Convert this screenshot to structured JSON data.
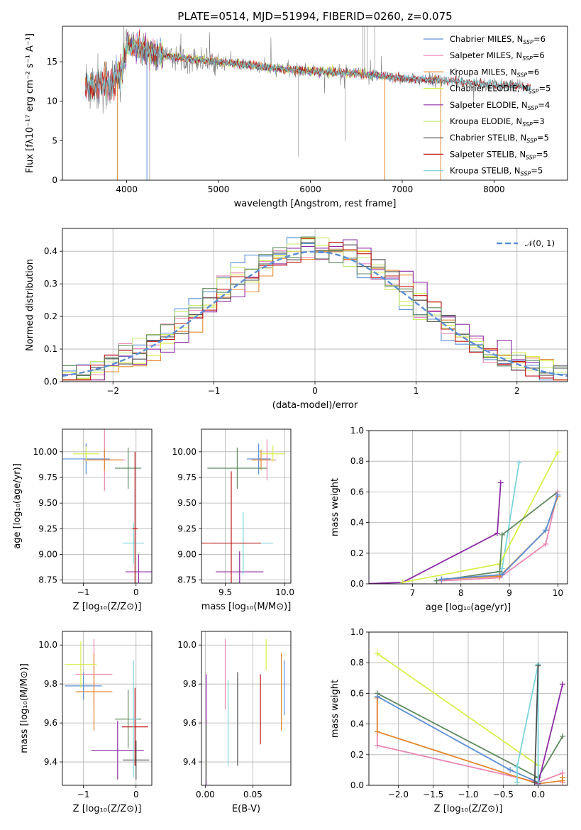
{
  "colors": {
    "chabrier_miles": "#5b8fd6",
    "salpeter_miles": "#e987b5",
    "kroupa_miles": "#e4872f",
    "chabrier_elodie": "#d8ef4a",
    "salpeter_elodie": "#8e2ca6",
    "kroupa_elodie": "#c8ea72",
    "chabrier_stelib": "#4c4c4c",
    "salpeter_stelib": "#c01818",
    "kroupa_stelib": "#7ad4dc",
    "spectrum_grey": "#808080",
    "gauss": "#5b8fd6",
    "green": "#5f8a5f",
    "cyan": "#6fc9d3"
  },
  "chart_data": [
    {
      "id": "spectrum",
      "type": "line",
      "title": "PLATE=0514, MJD=51994, FIBERID=0260, z=0.075",
      "xlabel": "wavelength [Angstrom, rest frame]",
      "ylabel": "Flux [fλ10⁻¹⁷ erg cm⁻² s⁻¹ A⁻¹]",
      "xlim": [
        3300,
        8800
      ],
      "ylim": [
        0,
        19.5
      ],
      "xticks": [
        "4000",
        "5000",
        "6000",
        "7000",
        "8000"
      ],
      "yticks": [
        "0",
        "5",
        "10",
        "15"
      ],
      "legend_position": "upper right",
      "legend": [
        {
          "label": "Chabrier MILES, N",
          "sub": "SSP",
          "n": "=6",
          "color_key": "chabrier_miles"
        },
        {
          "label": "Salpeter MILES, N",
          "sub": "SSP",
          "n": "=6",
          "color_key": "salpeter_miles"
        },
        {
          "label": "Kroupa MILES, N",
          "sub": "SSP",
          "n": "=6",
          "color_key": "kroupa_miles"
        },
        {
          "label": "Chabrier ELODIE, N",
          "sub": "SSP",
          "n": "=5",
          "color_key": "chabrier_elodie"
        },
        {
          "label": "Salpeter ELODIE, N",
          "sub": "SSP",
          "n": "=4",
          "color_key": "salpeter_elodie"
        },
        {
          "label": "Kroupa ELODIE, N",
          "sub": "SSP",
          "n": "=3",
          "color_key": "kroupa_elodie"
        },
        {
          "label": "Chabrier STELIB, N",
          "sub": "SSP",
          "n": "=5",
          "color_key": "chabrier_stelib"
        },
        {
          "label": "Salpeter STELIB, N",
          "sub": "SSP",
          "n": "=5",
          "color_key": "salpeter_stelib"
        },
        {
          "label": "Kroupa STELIB, N",
          "sub": "SSP",
          "n": "=5",
          "color_key": "kroupa_stelib"
        }
      ],
      "continuum": [
        [
          3550,
          12.0
        ],
        [
          3700,
          12.2
        ],
        [
          3850,
          12.3
        ],
        [
          3950,
          13.5
        ],
        [
          4000,
          17.0
        ],
        [
          4100,
          17.0
        ],
        [
          4300,
          16.0
        ],
        [
          4500,
          15.6
        ],
        [
          5000,
          15.0
        ],
        [
          5500,
          14.3
        ],
        [
          6000,
          13.8
        ],
        [
          6500,
          13.5
        ],
        [
          7000,
          12.9
        ],
        [
          7500,
          12.6
        ],
        [
          8000,
          12.1
        ],
        [
          8400,
          11.8
        ]
      ]
    },
    {
      "id": "residuals",
      "type": "histogram",
      "xlabel": "(data-model)/error",
      "ylabel": "Normed distribution",
      "xlim": [
        -2.5,
        2.5
      ],
      "ylim": [
        0,
        0.47
      ],
      "xticks": [
        "−2",
        "−1",
        "0",
        "1",
        "2"
      ],
      "yticks": [
        "0.0",
        "0.1",
        "0.2",
        "0.3",
        "0.4"
      ],
      "legend": "𝒩(0, 1)",
      "bins": [
        -2.5,
        2.5,
        36
      ]
    },
    {
      "id": "age_vs_Z",
      "type": "scatter",
      "xlabel": "Z [log₁₀(Z/Z⊙)]",
      "ylabel": "age  [log₁₀(age/yr)]",
      "xlim": [
        -1.4,
        0.3
      ],
      "ylim": [
        8.72,
        10.22
      ],
      "xticks": [
        "−1",
        "0"
      ],
      "yticks": [
        "8.75",
        "9.00",
        "9.25",
        "9.50",
        "9.75",
        "10.00"
      ],
      "points": [
        {
          "x": -0.95,
          "xerr": 0.45,
          "y": 9.93,
          "yerr": 0.15,
          "color_key": "chabrier_miles"
        },
        {
          "x": -0.6,
          "xerr": 0.4,
          "y": 9.92,
          "yerr": 0.3,
          "color_key": "salpeter_miles"
        },
        {
          "x": -0.6,
          "xerr": 0.35,
          "y": 9.92,
          "yerr": 0.1,
          "color_key": "kroupa_miles"
        },
        {
          "x": -0.95,
          "xerr": 0.25,
          "y": 9.98,
          "yerr": 0.07,
          "color_key": "chabrier_elodie"
        },
        {
          "x": 0.05,
          "xerr": 0.25,
          "y": 8.83,
          "yerr": 0.17,
          "color_key": "salpeter_elodie"
        },
        {
          "x": -0.15,
          "xerr": 0.25,
          "y": 9.84,
          "yerr": 0.2,
          "color_key": "green"
        },
        {
          "x": -0.05,
          "xerr": 0.2,
          "y": 9.11,
          "yerr": 0.2,
          "color_key": "kroupa_stelib"
        },
        {
          "x": -0.02,
          "xerr": 0.05,
          "y": 9.25,
          "yerr": 0.75,
          "color_key": "salpeter_stelib"
        }
      ]
    },
    {
      "id": "age_vs_mass",
      "type": "scatter",
      "xlabel": "mass [log₁₀(M/M⊙)]",
      "ylabel": "",
      "xlim": [
        9.3,
        10.05
      ],
      "ylim": [
        8.72,
        10.22
      ],
      "xticks": [
        "9.5",
        "10.0"
      ],
      "yticks": [
        "8.75",
        "9.00",
        "9.25",
        "9.50",
        "9.75",
        "10.00"
      ],
      "points": [
        {
          "x": 9.78,
          "xerr": 0.1,
          "y": 9.93,
          "yerr": 0.15,
          "color_key": "chabrier_miles"
        },
        {
          "x": 9.85,
          "xerr": 0.08,
          "y": 9.92,
          "yerr": 0.2,
          "color_key": "salpeter_miles"
        },
        {
          "x": 9.8,
          "xerr": 0.08,
          "y": 9.92,
          "yerr": 0.1,
          "color_key": "kroupa_miles"
        },
        {
          "x": 9.9,
          "xerr": 0.1,
          "y": 9.98,
          "yerr": 0.08,
          "color_key": "chabrier_elodie"
        },
        {
          "x": 9.62,
          "xerr": 0.2,
          "y": 8.83,
          "yerr": 0.2,
          "color_key": "salpeter_elodie"
        },
        {
          "x": 9.6,
          "xerr": 0.25,
          "y": 9.84,
          "yerr": 0.2,
          "color_key": "green"
        },
        {
          "x": 9.65,
          "xerr": 0.25,
          "y": 9.11,
          "yerr": 0.3,
          "color_key": "kroupa_stelib"
        },
        {
          "x": 9.55,
          "xerr": 0.25,
          "y": 9.11,
          "yerr": 0.7,
          "color_key": "salpeter_stelib"
        }
      ]
    },
    {
      "id": "massweight_vs_age",
      "type": "line",
      "xlabel": "age  [log₁₀(age/yr)]",
      "ylabel": "mass weight",
      "xlim": [
        6.1,
        10.2
      ],
      "ylim": [
        0,
        1
      ],
      "xticks": [
        "7",
        "8",
        "9",
        "10"
      ],
      "yticks": [
        "0.0",
        "0.2",
        "0.4",
        "0.6",
        "0.8",
        "1.0"
      ],
      "series": [
        {
          "color_key": "salpeter_elodie",
          "x": [
            6.0,
            6.8,
            8.75,
            8.82
          ],
          "y": [
            0.0,
            0.01,
            0.33,
            0.66
          ]
        },
        {
          "color_key": "kroupa_stelib",
          "x": [
            8.8,
            8.85,
            9.2
          ],
          "y": [
            0.05,
            0.1,
            0.79
          ]
        },
        {
          "color_key": "chabrier_elodie",
          "x": [
            6.8,
            8.8,
            10.0
          ],
          "y": [
            0.01,
            0.13,
            0.86
          ]
        },
        {
          "color_key": "green",
          "x": [
            7.5,
            8.8,
            8.85,
            10.0
          ],
          "y": [
            0.02,
            0.08,
            0.32,
            0.6
          ]
        },
        {
          "color_key": "salpeter_miles",
          "x": [
            7.6,
            8.8,
            9.75,
            10.0
          ],
          "y": [
            0.02,
            0.04,
            0.26,
            0.6
          ]
        },
        {
          "color_key": "kroupa_miles",
          "x": [
            7.6,
            8.8,
            9.75,
            10.0
          ],
          "y": [
            0.03,
            0.05,
            0.35,
            0.57
          ]
        },
        {
          "color_key": "chabrier_miles",
          "x": [
            7.6,
            8.85,
            9.75,
            10.0
          ],
          "y": [
            0.03,
            0.06,
            0.35,
            0.58
          ]
        }
      ]
    },
    {
      "id": "mass_vs_Z",
      "type": "scatter",
      "xlabel": "Z [log₁₀(Z/Z⊙)]",
      "ylabel": "mass [log₁₀(M/M⊙)]",
      "xlim": [
        -1.4,
        0.3
      ],
      "ylim": [
        9.28,
        10.07
      ],
      "xticks": [
        "−1",
        "0"
      ],
      "yticks": [
        "9.4",
        "9.6",
        "9.8",
        "10.0"
      ],
      "points": [
        {
          "x": -1.0,
          "xerr": 0.35,
          "y": 9.79,
          "yerr": 0.07,
          "color_key": "chabrier_miles"
        },
        {
          "x": -0.8,
          "xerr": 0.35,
          "y": 9.85,
          "yerr": 0.18,
          "color_key": "salpeter_miles"
        },
        {
          "x": -0.8,
          "xerr": 0.35,
          "y": 9.76,
          "yerr": 0.2,
          "color_key": "kroupa_miles"
        },
        {
          "x": -1.05,
          "xerr": 0.3,
          "y": 9.9,
          "yerr": 0.12,
          "color_key": "chabrier_elodie"
        },
        {
          "x": -0.15,
          "xerr": 0.25,
          "y": 9.62,
          "yerr": 0.15,
          "color_key": "green"
        },
        {
          "x": -0.35,
          "xerr": 0.5,
          "y": 9.46,
          "yerr": 0.15,
          "color_key": "salpeter_elodie"
        },
        {
          "x": -0.02,
          "xerr": 0.25,
          "y": 9.58,
          "yerr": 0.2,
          "color_key": "salpeter_stelib"
        },
        {
          "x": 0.0,
          "xerr": 0.25,
          "y": 9.41,
          "yerr": 0.1,
          "color_key": "chabrier_stelib"
        },
        {
          "x": -0.05,
          "xerr": 0.08,
          "y": 9.62,
          "yerr": 0.3,
          "color_key": "kroupa_stelib"
        }
      ]
    },
    {
      "id": "mass_vs_ebv",
      "type": "scatter",
      "xlabel": "E(B-V)",
      "ylabel": "",
      "xlim": [
        -0.004,
        0.09
      ],
      "ylim": [
        9.28,
        10.07
      ],
      "xticks": [
        "0.00",
        "0.05"
      ],
      "yticks": [
        "9.4",
        "9.6",
        "9.8",
        "10.0"
      ],
      "points": [
        {
          "x": 0.001,
          "y": 9.55,
          "yerr": 0.3,
          "color_key": "salpeter_elodie"
        },
        {
          "x": 0.001,
          "y": 9.45,
          "yerr": 0.14,
          "color_key": "green"
        },
        {
          "x": 0.021,
          "y": 9.85,
          "yerr": 0.18,
          "color_key": "salpeter_miles"
        },
        {
          "x": 0.024,
          "y": 9.6,
          "yerr": 0.22,
          "color_key": "kroupa_stelib"
        },
        {
          "x": 0.034,
          "y": 9.62,
          "yerr": 0.24,
          "color_key": "chabrier_stelib"
        },
        {
          "x": 0.058,
          "y": 9.67,
          "yerr": 0.18,
          "color_key": "salpeter_stelib"
        },
        {
          "x": 0.064,
          "y": 9.95,
          "yerr": 0.08,
          "color_key": "chabrier_elodie"
        },
        {
          "x": 0.08,
          "y": 9.76,
          "yerr": 0.2,
          "color_key": "kroupa_miles"
        },
        {
          "x": 0.083,
          "y": 9.78,
          "yerr": 0.14,
          "color_key": "chabrier_miles"
        }
      ]
    },
    {
      "id": "massweight_vs_Z",
      "type": "line",
      "xlabel": "Z [log₁₀(Z/Z⊙)]",
      "ylabel": "mass weight",
      "xlim": [
        -2.42,
        0.42
      ],
      "ylim": [
        0,
        1
      ],
      "xticks": [
        "−2.0",
        "−1.5",
        "−1.0",
        "−0.5",
        "0.0"
      ],
      "yticks": [
        "0.0",
        "0.2",
        "0.4",
        "0.6",
        "0.8",
        "1.0"
      ],
      "series": [
        {
          "color_key": "chabrier_elodie",
          "x": [
            -2.3,
            0.0
          ],
          "y": [
            0.86,
            0.13
          ]
        },
        {
          "color_key": "salpeter_miles",
          "x": [
            -2.3,
            -2.3,
            0.0,
            0.35,
            0.35
          ],
          "y": [
            0.6,
            0.26,
            0.02,
            0.08,
            0.02
          ]
        },
        {
          "color_key": "kroupa_miles",
          "x": [
            -2.3,
            -2.3,
            0.0,
            0.35,
            0.35
          ],
          "y": [
            0.57,
            0.35,
            0.01,
            0.03,
            0.05
          ]
        },
        {
          "color_key": "green",
          "x": [
            -2.3,
            0.0,
            0.35
          ],
          "y": [
            0.6,
            0.05,
            0.32
          ]
        },
        {
          "color_key": "chabrier_miles",
          "x": [
            -2.3,
            -0.4,
            0.0
          ],
          "y": [
            0.58,
            0.1,
            0.02
          ]
        },
        {
          "color_key": "salpeter_elodie",
          "x": [
            0.0,
            0.35
          ],
          "y": [
            0.01,
            0.66
          ]
        },
        {
          "color_key": "kroupa_stelib",
          "x": [
            -0.3,
            -0.3,
            0.0,
            0.0
          ],
          "y": [
            0.02,
            0.12,
            0.79,
            0.02
          ]
        },
        {
          "color_key": "chabrier_stelib",
          "x": [
            -0.05,
            0.0
          ],
          "y": [
            0.02,
            0.78
          ]
        }
      ]
    }
  ]
}
